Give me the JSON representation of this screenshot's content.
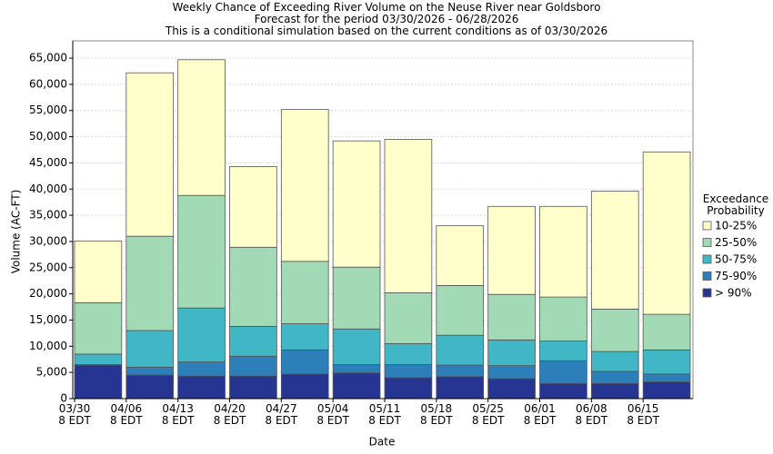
{
  "chart_data": {
    "type": "stacked_bar",
    "title": "Weekly Chance of Exceeding River Volume on the Neuse River near Goldsboro",
    "subtitle": "Forecast for the period 03/30/2026 - 06/28/2026",
    "note": "This is a conditional simulation based on the current conditions as of 03/30/2026",
    "x_label": "Date",
    "y_label": "Volume (AC-FT)",
    "legend_title": "Exceedance\nProbability",
    "legend_position": "right",
    "grid": true,
    "categories": [
      "03/30\n8 EDT",
      "04/06\n8 EDT",
      "04/13\n8 EDT",
      "04/20\n8 EDT",
      "04/27\n8 EDT",
      "05/04\n8 EDT",
      "05/11\n8 EDT",
      "05/18\n8 EDT",
      "05/25\n8 EDT",
      "06/01\n8 EDT",
      "06/08\n8 EDT",
      "06/15\n8 EDT"
    ],
    "series": [
      {
        "name": "> 90%",
        "color": "#263591",
        "values": [
          6400,
          4500,
          4300,
          4300,
          4700,
          4900,
          4000,
          4200,
          3800,
          2900,
          2900,
          3200
        ]
      },
      {
        "name": "75-90%",
        "color": "#2c7fb8",
        "values": [
          100,
          1500,
          2700,
          3800,
          4600,
          1600,
          2500,
          2200,
          2500,
          4300,
          2300,
          1500
        ]
      },
      {
        "name": "50-75%",
        "color": "#41b6c4",
        "values": [
          2000,
          7000,
          10300,
          5700,
          5000,
          6800,
          4000,
          5700,
          4900,
          3800,
          3800,
          4600
        ]
      },
      {
        "name": "25-50%",
        "color": "#a1dab4",
        "values": [
          9800,
          18000,
          21500,
          15100,
          11900,
          11800,
          9700,
          9500,
          8700,
          8400,
          8100,
          6800
        ]
      },
      {
        "name": "10-25%",
        "color": "#ffffcc",
        "values": [
          11800,
          31200,
          25900,
          15400,
          29000,
          24100,
          29300,
          11400,
          16800,
          17300,
          22500,
          31000
        ]
      }
    ],
    "ylim": [
      0,
      68300
    ],
    "yticks": [
      0,
      {
        "value": 5000,
        "label": "5,000"
      },
      {
        "value": 10000,
        "label": "10,000"
      },
      {
        "value": 15000,
        "label": "15,000"
      },
      {
        "value": 20000,
        "label": "20,000"
      },
      {
        "value": 25000,
        "label": "25,000"
      },
      {
        "value": 30000,
        "label": "30,000"
      },
      {
        "value": 35000,
        "label": "35,000"
      },
      {
        "value": 40000,
        "label": "40,000"
      },
      {
        "value": 45000,
        "label": "45,000"
      },
      {
        "value": 50000,
        "label": "50,000"
      },
      {
        "value": 55000,
        "label": "55,000"
      },
      {
        "value": 60000,
        "label": "60,000"
      },
      {
        "value": 65000,
        "label": "65,000"
      }
    ]
  }
}
